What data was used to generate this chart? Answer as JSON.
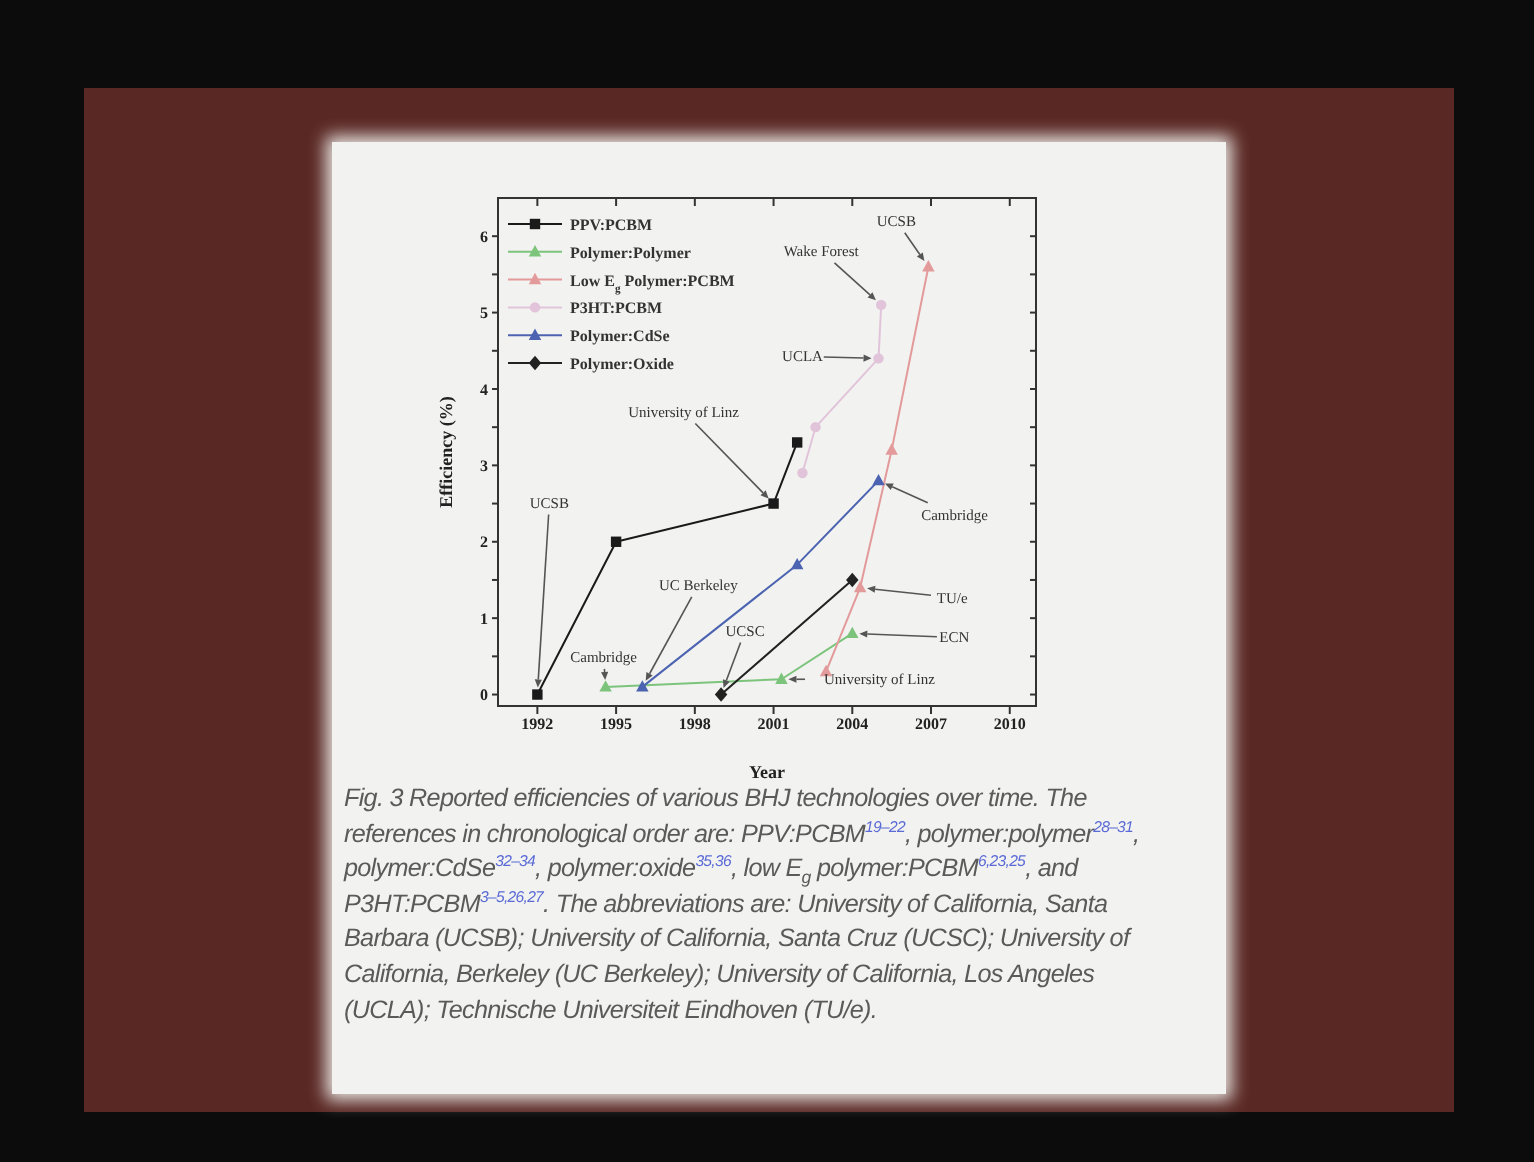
{
  "chart_data": {
    "type": "line",
    "xlabel": "Year",
    "ylabel": "Efficiency (%)",
    "xlim": [
      1990.5,
      2011
    ],
    "xticks": [
      1992,
      1995,
      1998,
      2001,
      2004,
      2007,
      2010
    ],
    "ylim": [
      -0.15,
      6.5
    ],
    "yticks": [
      0,
      {
        "value": 0.5,
        "label": null
      },
      1,
      {
        "value": 1.5,
        "label": null
      },
      2,
      {
        "value": 2.5,
        "label": null
      },
      3,
      {
        "value": 3.5,
        "label": null
      },
      4,
      {
        "value": 4.5,
        "label": null
      },
      5,
      {
        "value": 5.5,
        "label": null
      },
      6
    ],
    "legend": "top left",
    "line_style": "solid",
    "series": [
      {
        "name": "PPV:PCBM",
        "color": "#1a1a1a",
        "marker": "square",
        "x": [
          1992.0,
          1995.0,
          2001.0,
          2001.9
        ],
        "values": [
          0.0,
          2.0,
          2.5,
          3.3
        ]
      },
      {
        "name": "Polymer:Polymer",
        "color": "#7cc47c",
        "marker": "triangle",
        "x": [
          1994.6,
          2001.3,
          2004.0
        ],
        "values": [
          0.1,
          0.2,
          0.8
        ]
      },
      {
        "name": "Low E$_{g}$ Polymer:PCBM",
        "color": "#e39a9a",
        "marker": "triangle",
        "x": [
          2003.0,
          2004.3,
          2005.5,
          2006.9
        ],
        "values": [
          0.3,
          1.4,
          3.2,
          5.6
        ]
      },
      {
        "name": "P3HT:PCBM",
        "color": "#e2c4da",
        "marker": "circle",
        "x": [
          2002.1,
          2002.6,
          2005.0,
          2005.1
        ],
        "values": [
          2.9,
          3.5,
          4.4,
          5.1
        ]
      },
      {
        "name": "Polymer:CdSe",
        "color": "#4b63b0",
        "marker": "triangle",
        "x": [
          1996.0,
          2001.9,
          2005.0
        ],
        "values": [
          0.1,
          1.7,
          2.8
        ]
      },
      {
        "name": "Polymer:Oxide",
        "color": "#222222",
        "marker": "diamond",
        "x": [
          1999.0,
          2004.0
        ],
        "values": [
          0.0,
          1.5
        ]
      }
    ],
    "annotations": [
      {
        "text": "UCSB",
        "x": 1992.0,
        "y": 0.0
      },
      {
        "text": "Cambridge",
        "x": 1994.6,
        "y": 0.1
      },
      {
        "text": "UC Berkeley",
        "x": 1996.0,
        "y": 0.1
      },
      {
        "text": "UCSC",
        "x": 1999.0,
        "y": 0.0
      },
      {
        "text": "University of Linz",
        "x": 2001.0,
        "y": 2.5
      },
      {
        "text": "UCLA",
        "x": 2005.0,
        "y": 4.4
      },
      {
        "text": "Wake Forest",
        "x": 2005.1,
        "y": 5.1
      },
      {
        "text": "UCSB",
        "x": 2006.9,
        "y": 5.6
      },
      {
        "text": "Cambridge",
        "x": 2005.0,
        "y": 2.8
      },
      {
        "text": "TU/e",
        "x": 2004.3,
        "y": 1.4
      },
      {
        "text": "ECN",
        "x": 2004.0,
        "y": 0.8
      },
      {
        "text": "University of Linz",
        "x": 2001.3,
        "y": 0.2
      },
      "Fig. 3 Reported efficiencies of various BHJ technologies over time. The references in chronological order are: PPV:PCBM$^{19–22}$, polymer:polymer$^{28–31}$, polymer:CdSe$^{32–34}$, polymer:oxide$^{35,36}$, low E$_{g}$ polymer:PCBM$^{6,23,25}$, and P3HT:PCBM$^{3–5,26,27}$. The abbreviations are: University of California, Santa Barbara (UCSB); University of California, Santa Cruz (UCSC); University of California, Berkeley (UC Berkeley); University of California, Los Angeles (UCLA); Technische Universiteit Eindhoven (TU/e)."
    ]
  }
}
